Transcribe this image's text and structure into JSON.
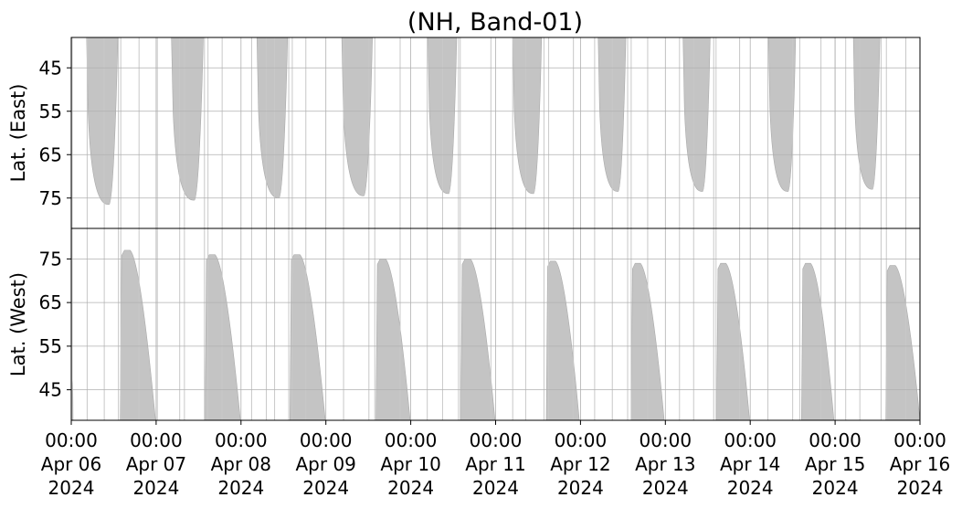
{
  "chart_data": {
    "type": "heatmap",
    "title": "(NH, Band-01)",
    "x_tick_labels": [
      [
        "00:00",
        "Apr 06",
        "2024"
      ],
      [
        "00:00",
        "Apr 07",
        "2024"
      ],
      [
        "00:00",
        "Apr 08",
        "2024"
      ],
      [
        "00:00",
        "Apr 09",
        "2024"
      ],
      [
        "00:00",
        "Apr 10",
        "2024"
      ],
      [
        "00:00",
        "Apr 11",
        "2024"
      ],
      [
        "00:00",
        "Apr 12",
        "2024"
      ],
      [
        "00:00",
        "Apr 13",
        "2024"
      ],
      [
        "00:00",
        "Apr 14",
        "2024"
      ],
      [
        "00:00",
        "Apr 15",
        "2024"
      ],
      [
        "00:00",
        "Apr 16",
        "2024"
      ]
    ],
    "xlim": [
      "2024-04-06 00:00",
      "2024-04-16 00:00"
    ],
    "grid": true,
    "color": "#c4c4c4",
    "panels": [
      {
        "name": "east",
        "ylabel": "Lat. (East)",
        "ylim": [
          38,
          82
        ],
        "y_inverted": true,
        "yticks": [
          45,
          55,
          65,
          75
        ],
        "ytick_labels": [
          "45",
          "55",
          "65",
          "75"
        ],
        "coverage_periods": [
          {
            "start": "2024-04-06 04:20",
            "end": "2024-04-06 13:10",
            "max_lat": 76.5
          },
          {
            "start": "2024-04-07 04:20",
            "end": "2024-04-07 13:20",
            "max_lat": 75.5
          },
          {
            "start": "2024-04-08 04:30",
            "end": "2024-04-08 13:10",
            "max_lat": 75.0
          },
          {
            "start": "2024-04-09 04:30",
            "end": "2024-04-09 13:10",
            "max_lat": 74.5
          },
          {
            "start": "2024-04-10 04:50",
            "end": "2024-04-10 13:00",
            "max_lat": 74.0
          },
          {
            "start": "2024-04-11 04:50",
            "end": "2024-04-11 13:00",
            "max_lat": 74.0
          },
          {
            "start": "2024-04-12 05:00",
            "end": "2024-04-12 12:50",
            "max_lat": 73.5
          },
          {
            "start": "2024-04-13 05:00",
            "end": "2024-04-13 12:40",
            "max_lat": 73.5
          },
          {
            "start": "2024-04-14 05:10",
            "end": "2024-04-14 12:50",
            "max_lat": 73.5
          },
          {
            "start": "2024-04-15 05:10",
            "end": "2024-04-15 12:40",
            "max_lat": 73.0
          }
        ]
      },
      {
        "name": "west",
        "ylabel": "Lat. (West)",
        "ylim": [
          38,
          82
        ],
        "y_inverted": false,
        "yticks": [
          45,
          55,
          65,
          75
        ],
        "ytick_labels": [
          "45",
          "55",
          "65",
          "75"
        ],
        "coverage_periods": [
          {
            "start": "2024-04-06 13:50",
            "end": "2024-04-06 23:50",
            "max_lat": 77.0
          },
          {
            "start": "2024-04-07 13:50",
            "end": "2024-04-07 23:50",
            "max_lat": 76.0
          },
          {
            "start": "2024-04-08 13:50",
            "end": "2024-04-08 23:50",
            "max_lat": 76.0
          },
          {
            "start": "2024-04-09 14:10",
            "end": "2024-04-09 23:50",
            "max_lat": 75.0
          },
          {
            "start": "2024-04-10 14:10",
            "end": "2024-04-10 23:50",
            "max_lat": 75.0
          },
          {
            "start": "2024-04-11 14:20",
            "end": "2024-04-11 23:40",
            "max_lat": 74.5
          },
          {
            "start": "2024-04-12 14:20",
            "end": "2024-04-12 23:40",
            "max_lat": 74.0
          },
          {
            "start": "2024-04-13 14:30",
            "end": "2024-04-13 23:50",
            "max_lat": 74.0
          },
          {
            "start": "2024-04-14 14:30",
            "end": "2024-04-14 23:40",
            "max_lat": 74.0
          },
          {
            "start": "2024-04-15 14:20",
            "end": "2024-04-15 23:59",
            "max_lat": 73.5
          }
        ],
        "partial_at_start": {
          "start": "2024-04-06 00:00",
          "end": "2024-04-06 00:30",
          "max_lat": 48.0
        }
      }
    ],
    "scattered_columns": [
      "2024-04-06 00:15",
      "2024-04-06 04:30",
      "2024-04-06 09:20",
      "2024-04-06 13:20",
      "2024-04-06 14:00",
      "2024-04-06 19:10",
      "2024-04-07 00:20",
      "2024-04-07 06:40",
      "2024-04-07 08:00",
      "2024-04-07 13:40",
      "2024-04-07 14:40",
      "2024-04-07 18:40",
      "2024-04-08 03:00",
      "2024-04-08 07:10",
      "2024-04-08 09:30",
      "2024-04-08 13:30",
      "2024-04-08 14:30",
      "2024-04-08 18:20",
      "2024-04-09 05:00",
      "2024-04-09 12:10",
      "2024-04-09 13:50",
      "2024-04-09 21:00",
      "2024-04-10 04:40",
      "2024-04-10 09:00",
      "2024-04-10 13:30",
      "2024-04-10 14:00",
      "2024-04-10 22:40",
      "2024-04-11 04:50",
      "2024-04-11 08:30",
      "2024-04-11 13:40",
      "2024-04-11 15:00",
      "2024-04-11 22:00",
      "2024-04-12 04:00",
      "2024-04-12 09:00",
      "2024-04-12 13:20",
      "2024-04-12 14:20",
      "2024-04-12 19:00",
      "2024-04-13 04:00",
      "2024-04-13 08:00",
      "2024-04-13 13:40",
      "2024-04-13 14:20",
      "2024-04-13 21:00",
      "2024-04-14 05:00",
      "2024-04-14 12:00",
      "2024-04-14 14:00",
      "2024-04-14 20:00",
      "2024-04-15 00:00",
      "2024-04-15 03:00",
      "2024-04-15 07:00",
      "2024-04-15 13:00",
      "2024-04-15 14:30",
      "2024-04-15 20:00"
    ]
  }
}
